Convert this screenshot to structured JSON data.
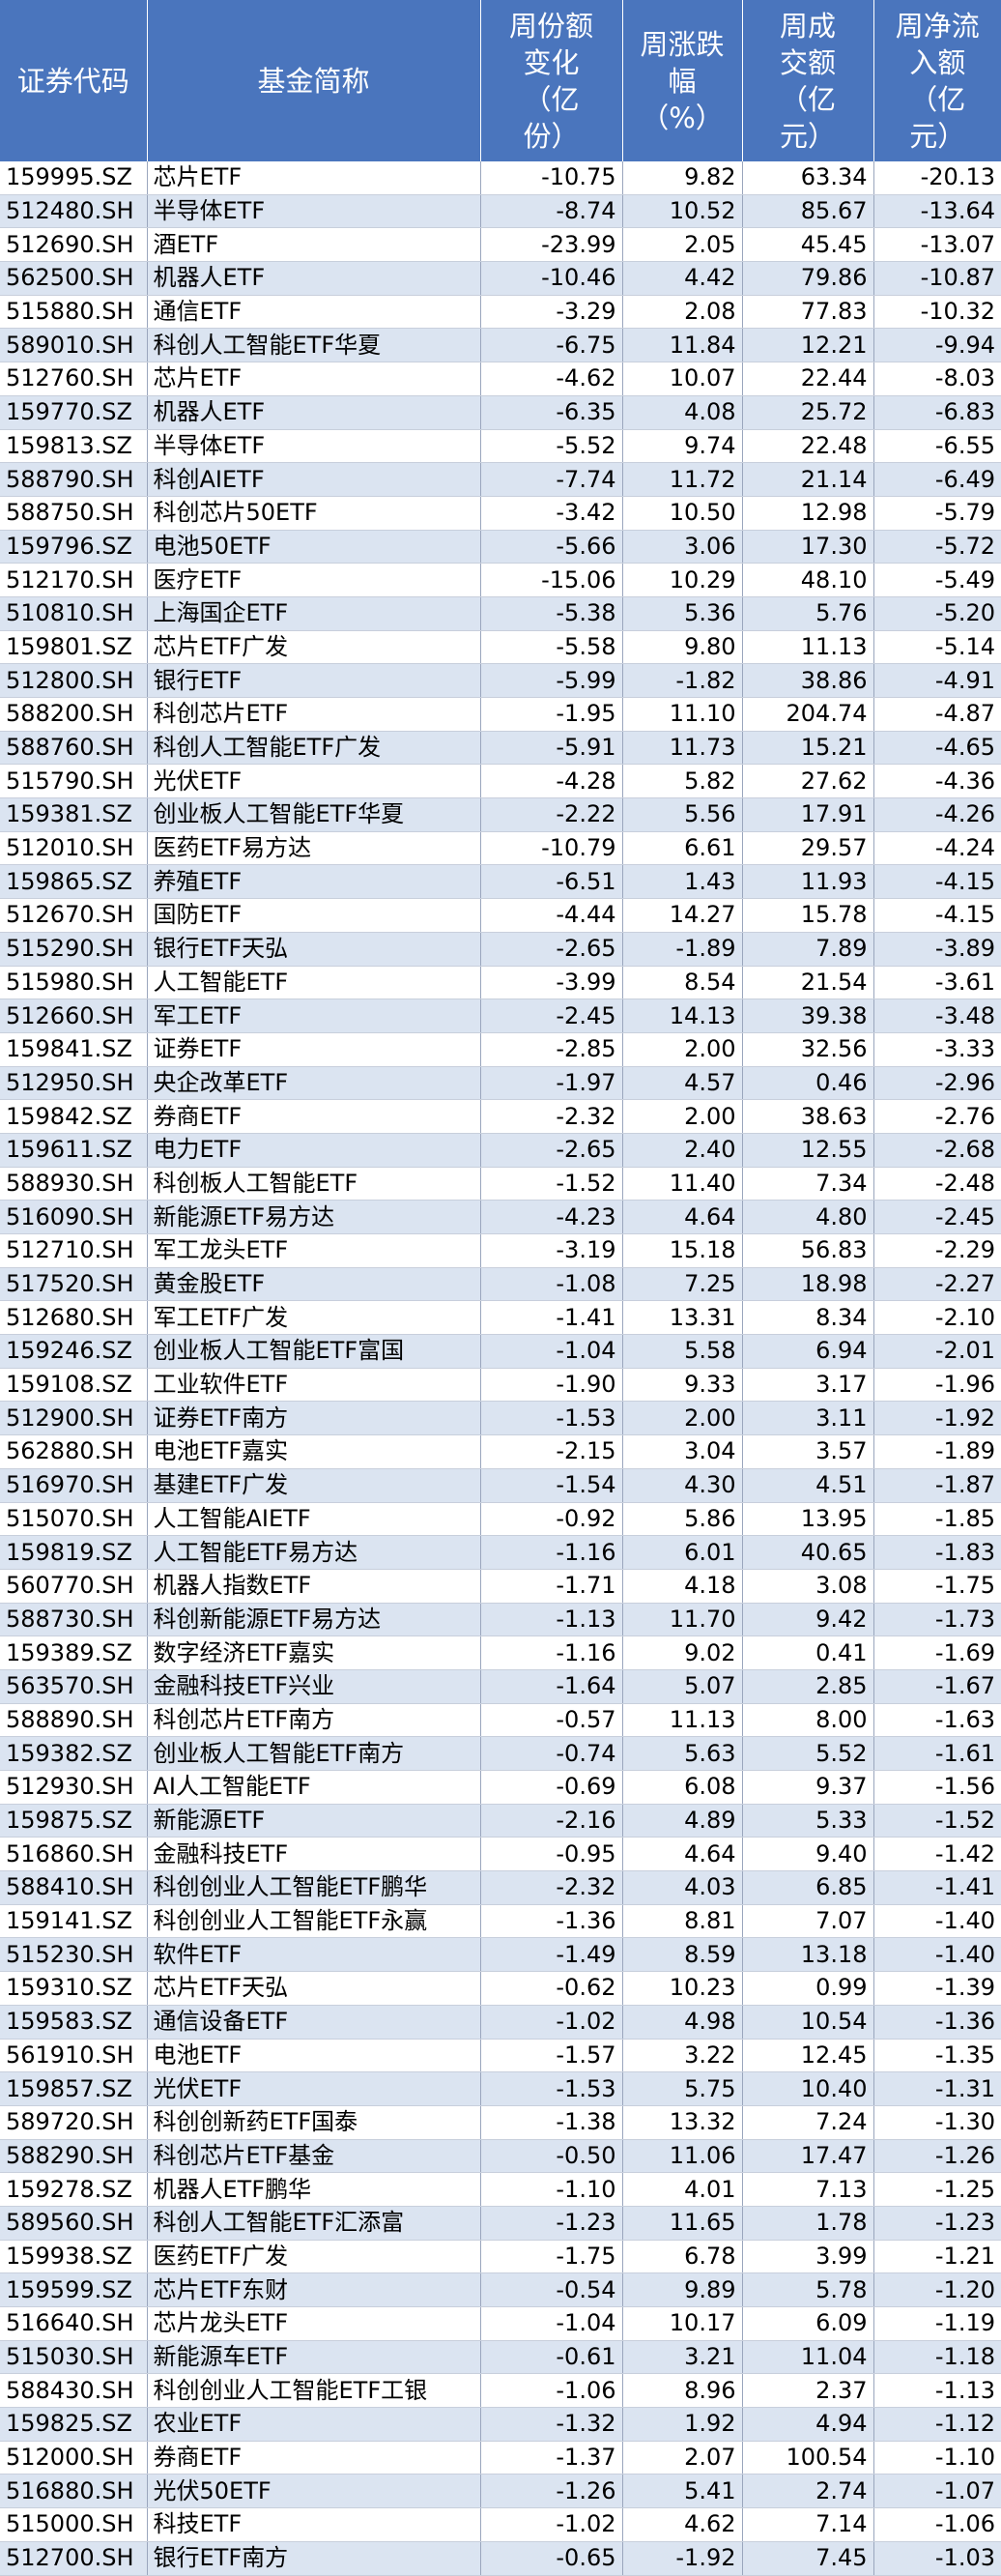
{
  "headers": {
    "code": [
      "证券代码"
    ],
    "name": [
      "基金简称"
    ],
    "share_change": [
      "周份额",
      "变化",
      "（亿",
      "份）"
    ],
    "pct_change": [
      "周涨跌",
      "幅",
      "（%）"
    ],
    "turnover": [
      "周成",
      "交额",
      "（亿",
      "元）"
    ],
    "net_inflow": [
      "周净流",
      "入额",
      "（亿",
      "元）"
    ]
  },
  "rows": [
    [
      "159995.SZ",
      "芯片ETF",
      "-10.75",
      "9.82",
      "63.34",
      "-20.13"
    ],
    [
      "512480.SH",
      "半导体ETF",
      "-8.74",
      "10.52",
      "85.67",
      "-13.64"
    ],
    [
      "512690.SH",
      "酒ETF",
      "-23.99",
      "2.05",
      "45.45",
      "-13.07"
    ],
    [
      "562500.SH",
      "机器人ETF",
      "-10.46",
      "4.42",
      "79.86",
      "-10.87"
    ],
    [
      "515880.SH",
      "通信ETF",
      "-3.29",
      "2.08",
      "77.83",
      "-10.32"
    ],
    [
      "589010.SH",
      "科创人工智能ETF华夏",
      "-6.75",
      "11.84",
      "12.21",
      "-9.94"
    ],
    [
      "512760.SH",
      "芯片ETF",
      "-4.62",
      "10.07",
      "22.44",
      "-8.03"
    ],
    [
      "159770.SZ",
      "机器人ETF",
      "-6.35",
      "4.08",
      "25.72",
      "-6.83"
    ],
    [
      "159813.SZ",
      "半导体ETF",
      "-5.52",
      "9.74",
      "22.48",
      "-6.55"
    ],
    [
      "588790.SH",
      "科创AIETF",
      "-7.74",
      "11.72",
      "21.14",
      "-6.49"
    ],
    [
      "588750.SH",
      "科创芯片50ETF",
      "-3.42",
      "10.50",
      "12.98",
      "-5.79"
    ],
    [
      "159796.SZ",
      "电池50ETF",
      "-5.66",
      "3.06",
      "17.30",
      "-5.72"
    ],
    [
      "512170.SH",
      "医疗ETF",
      "-15.06",
      "10.29",
      "48.10",
      "-5.49"
    ],
    [
      "510810.SH",
      "上海国企ETF",
      "-5.38",
      "5.36",
      "5.76",
      "-5.20"
    ],
    [
      "159801.SZ",
      "芯片ETF广发",
      "-5.58",
      "9.80",
      "11.13",
      "-5.14"
    ],
    [
      "512800.SH",
      "银行ETF",
      "-5.99",
      "-1.82",
      "38.86",
      "-4.91"
    ],
    [
      "588200.SH",
      "科创芯片ETF",
      "-1.95",
      "11.10",
      "204.74",
      "-4.87"
    ],
    [
      "588760.SH",
      "科创人工智能ETF广发",
      "-5.91",
      "11.73",
      "15.21",
      "-4.65"
    ],
    [
      "515790.SH",
      "光伏ETF",
      "-4.28",
      "5.82",
      "27.62",
      "-4.36"
    ],
    [
      "159381.SZ",
      "创业板人工智能ETF华夏",
      "-2.22",
      "5.56",
      "17.91",
      "-4.26"
    ],
    [
      "512010.SH",
      "医药ETF易方达",
      "-10.79",
      "6.61",
      "29.57",
      "-4.24"
    ],
    [
      "159865.SZ",
      "养殖ETF",
      "-6.51",
      "1.43",
      "11.93",
      "-4.15"
    ],
    [
      "512670.SH",
      "国防ETF",
      "-4.44",
      "14.27",
      "15.78",
      "-4.15"
    ],
    [
      "515290.SH",
      "银行ETF天弘",
      "-2.65",
      "-1.89",
      "7.89",
      "-3.89"
    ],
    [
      "515980.SH",
      "人工智能ETF",
      "-3.99",
      "8.54",
      "21.54",
      "-3.61"
    ],
    [
      "512660.SH",
      "军工ETF",
      "-2.45",
      "14.13",
      "39.38",
      "-3.48"
    ],
    [
      "159841.SZ",
      "证券ETF",
      "-2.85",
      "2.00",
      "32.56",
      "-3.33"
    ],
    [
      "512950.SH",
      "央企改革ETF",
      "-1.97",
      "4.57",
      "0.46",
      "-2.96"
    ],
    [
      "159842.SZ",
      "券商ETF",
      "-2.32",
      "2.00",
      "38.63",
      "-2.76"
    ],
    [
      "159611.SZ",
      "电力ETF",
      "-2.65",
      "2.40",
      "12.55",
      "-2.68"
    ],
    [
      "588930.SH",
      "科创板人工智能ETF",
      "-1.52",
      "11.40",
      "7.34",
      "-2.48"
    ],
    [
      "516090.SH",
      "新能源ETF易方达",
      "-4.23",
      "4.64",
      "4.80",
      "-2.45"
    ],
    [
      "512710.SH",
      "军工龙头ETF",
      "-3.19",
      "15.18",
      "56.83",
      "-2.29"
    ],
    [
      "517520.SH",
      "黄金股ETF",
      "-1.08",
      "7.25",
      "18.98",
      "-2.27"
    ],
    [
      "512680.SH",
      "军工ETF广发",
      "-1.41",
      "13.31",
      "8.34",
      "-2.10"
    ],
    [
      "159246.SZ",
      "创业板人工智能ETF富国",
      "-1.04",
      "5.58",
      "6.94",
      "-2.01"
    ],
    [
      "159108.SZ",
      "工业软件ETF",
      "-1.90",
      "9.33",
      "3.17",
      "-1.96"
    ],
    [
      "512900.SH",
      "证券ETF南方",
      "-1.53",
      "2.00",
      "3.11",
      "-1.92"
    ],
    [
      "562880.SH",
      "电池ETF嘉实",
      "-2.15",
      "3.04",
      "3.57",
      "-1.89"
    ],
    [
      "516970.SH",
      "基建ETF广发",
      "-1.54",
      "4.30",
      "4.51",
      "-1.87"
    ],
    [
      "515070.SH",
      "人工智能AIETF",
      "-0.92",
      "5.86",
      "13.95",
      "-1.85"
    ],
    [
      "159819.SZ",
      "人工智能ETF易方达",
      "-1.16",
      "6.01",
      "40.65",
      "-1.83"
    ],
    [
      "560770.SH",
      "机器人指数ETF",
      "-1.71",
      "4.18",
      "3.08",
      "-1.75"
    ],
    [
      "588730.SH",
      "科创新能源ETF易方达",
      "-1.13",
      "11.70",
      "9.42",
      "-1.73"
    ],
    [
      "159389.SZ",
      "数字经济ETF嘉实",
      "-1.16",
      "9.02",
      "0.41",
      "-1.69"
    ],
    [
      "563570.SH",
      "金融科技ETF兴业",
      "-1.64",
      "5.07",
      "2.85",
      "-1.67"
    ],
    [
      "588890.SH",
      "科创芯片ETF南方",
      "-0.57",
      "11.13",
      "8.00",
      "-1.63"
    ],
    [
      "159382.SZ",
      "创业板人工智能ETF南方",
      "-0.74",
      "5.63",
      "5.52",
      "-1.61"
    ],
    [
      "512930.SH",
      "AI人工智能ETF",
      "-0.69",
      "6.08",
      "9.37",
      "-1.56"
    ],
    [
      "159875.SZ",
      "新能源ETF",
      "-2.16",
      "4.89",
      "5.33",
      "-1.52"
    ],
    [
      "516860.SH",
      "金融科技ETF",
      "-0.95",
      "4.64",
      "9.40",
      "-1.42"
    ],
    [
      "588410.SH",
      "科创创业人工智能ETF鹏华",
      "-2.32",
      "4.03",
      "6.85",
      "-1.41"
    ],
    [
      "159141.SZ",
      "科创创业人工智能ETF永赢",
      "-1.36",
      "8.81",
      "7.07",
      "-1.40"
    ],
    [
      "515230.SH",
      "软件ETF",
      "-1.49",
      "8.59",
      "13.18",
      "-1.40"
    ],
    [
      "159310.SZ",
      "芯片ETF天弘",
      "-0.62",
      "10.23",
      "0.99",
      "-1.39"
    ],
    [
      "159583.SZ",
      "通信设备ETF",
      "-1.02",
      "4.98",
      "10.54",
      "-1.36"
    ],
    [
      "561910.SH",
      "电池ETF",
      "-1.57",
      "3.22",
      "12.45",
      "-1.35"
    ],
    [
      "159857.SZ",
      "光伏ETF",
      "-1.53",
      "5.75",
      "10.40",
      "-1.31"
    ],
    [
      "589720.SH",
      "科创创新药ETF国泰",
      "-1.38",
      "13.32",
      "7.24",
      "-1.30"
    ],
    [
      "588290.SH",
      "科创芯片ETF基金",
      "-0.50",
      "11.06",
      "17.47",
      "-1.26"
    ],
    [
      "159278.SZ",
      "机器人ETF鹏华",
      "-1.10",
      "4.01",
      "7.13",
      "-1.25"
    ],
    [
      "589560.SH",
      "科创人工智能ETF汇添富",
      "-1.23",
      "11.65",
      "1.78",
      "-1.23"
    ],
    [
      "159938.SZ",
      "医药ETF广发",
      "-1.75",
      "6.78",
      "3.99",
      "-1.21"
    ],
    [
      "159599.SZ",
      "芯片ETF东财",
      "-0.54",
      "9.89",
      "5.78",
      "-1.20"
    ],
    [
      "516640.SH",
      "芯片龙头ETF",
      "-1.04",
      "10.17",
      "6.09",
      "-1.19"
    ],
    [
      "515030.SH",
      "新能源车ETF",
      "-0.61",
      "3.21",
      "11.04",
      "-1.18"
    ],
    [
      "588430.SH",
      "科创创业人工智能ETF工银",
      "-1.06",
      "8.96",
      "2.37",
      "-1.13"
    ],
    [
      "159825.SZ",
      "农业ETF",
      "-1.32",
      "1.92",
      "4.94",
      "-1.12"
    ],
    [
      "512000.SH",
      "券商ETF",
      "-1.37",
      "2.07",
      "100.54",
      "-1.10"
    ],
    [
      "516880.SH",
      "光伏50ETF",
      "-1.26",
      "5.41",
      "2.74",
      "-1.07"
    ],
    [
      "515000.SH",
      "科技ETF",
      "-1.02",
      "4.62",
      "7.14",
      "-1.06"
    ],
    [
      "512700.SH",
      "银行ETF南方",
      "-0.65",
      "-1.92",
      "7.45",
      "-1.03"
    ]
  ]
}
